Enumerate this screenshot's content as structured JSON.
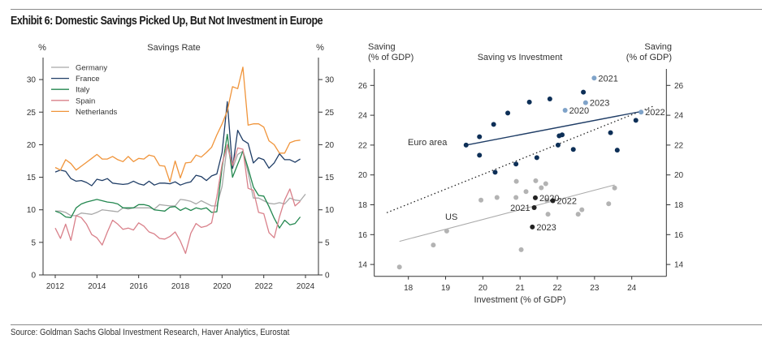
{
  "title": "Exhibit 6: Domestic Savings Picked Up, But Not Investment in Europe",
  "source": "Source: Goldman Sachs Global Investment Research, Haver Analytics, Eurostat",
  "chart_data": [
    {
      "type": "line",
      "title": "Savings Rate",
      "ylabel_left": "%",
      "ylabel_right": "%",
      "xlim": [
        2011.4,
        2024.3
      ],
      "ylim": [
        0,
        33
      ],
      "xticks": [
        2012,
        2014,
        2016,
        2018,
        2020,
        2022,
        2024
      ],
      "yticks": [
        0,
        5,
        10,
        15,
        20,
        25,
        30
      ],
      "grid": false,
      "legend": "top-left",
      "x_start": 2012.0,
      "x_step": 0.25,
      "series": [
        {
          "name": "Germany",
          "color": "#a8a8a8",
          "values": [
            9.8,
            9.8,
            9.6,
            9.1,
            9.1,
            9.5,
            9.4,
            9.3,
            9.6,
            10.0,
            9.9,
            9.8,
            9.7,
            10.3,
            10.1,
            10.3,
            10.3,
            10.3,
            10.3,
            10.1,
            10.8,
            10.7,
            10.6,
            10.6,
            11.6,
            11.5,
            11.3,
            10.9,
            11.4,
            11.0,
            10.6,
            10.6,
            13.6,
            20.0,
            16.3,
            18.5,
            19.0,
            15.7,
            11.8,
            11.8,
            11.4,
            11.0,
            10.9,
            11.1,
            10.9,
            11.8,
            11.5,
            11.4,
            12.4
          ]
        },
        {
          "name": "France",
          "color": "#1f3d66",
          "values": [
            15.8,
            16.1,
            15.9,
            14.8,
            14.4,
            14.5,
            14.2,
            13.7,
            14.7,
            14.5,
            14.8,
            14.1,
            14.0,
            13.9,
            14.0,
            14.4,
            14.0,
            13.8,
            14.4,
            13.8,
            14.1,
            14.1,
            14.0,
            14.3,
            13.8,
            14.1,
            14.3,
            15.3,
            15.1,
            14.5,
            15.2,
            15.5,
            18.8,
            26.6,
            16.4,
            22.2,
            20.7,
            20.2,
            17.2,
            18.0,
            17.7,
            16.4,
            17.2,
            18.6,
            17.7,
            17.7,
            17.3,
            17.8
          ]
        },
        {
          "name": "Italy",
          "color": "#23874f",
          "values": [
            9.8,
            9.5,
            8.9,
            8.8,
            10.3,
            10.9,
            11.2,
            11.4,
            11.6,
            11.4,
            11.2,
            11.1,
            10.9,
            10.3,
            10.3,
            10.3,
            10.8,
            10.8,
            10.6,
            10.0,
            9.9,
            9.8,
            10.4,
            10.5,
            9.9,
            10.3,
            9.9,
            10.3,
            10.1,
            10.3,
            9.6,
            9.7,
            16.5,
            21.6,
            15.0,
            17.0,
            19.0,
            16.4,
            13.5,
            12.2,
            12.1,
            10.5,
            8.7,
            7.2,
            8.4,
            7.7,
            7.9,
            8.9
          ]
        },
        {
          "name": "Spain",
          "color": "#d9808a",
          "values": [
            7.2,
            5.6,
            7.8,
            5.3,
            9.1,
            8.8,
            7.8,
            6.2,
            5.7,
            4.6,
            6.6,
            8.4,
            7.8,
            7.0,
            7.2,
            6.9,
            8.0,
            7.5,
            6.6,
            6.3,
            5.6,
            5.5,
            5.9,
            6.6,
            5.2,
            3.3,
            6.4,
            7.9,
            7.3,
            7.5,
            8.0,
            12.0,
            17.0,
            20.0,
            16.8,
            19.5,
            19.3,
            13.3,
            13.0,
            9.6,
            9.4,
            6.5,
            5.7,
            8.9,
            11.5,
            13.2,
            10.6,
            11.3
          ]
        },
        {
          "name": "Netherlands",
          "color": "#f0943a",
          "values": [
            16.5,
            16.1,
            17.7,
            17.1,
            16.1,
            16.7,
            17.3,
            17.9,
            18.5,
            17.8,
            17.8,
            18.2,
            17.7,
            17.4,
            18.2,
            17.4,
            17.9,
            17.8,
            18.4,
            18.2,
            16.8,
            16.7,
            14.3,
            17.5,
            14.9,
            17.2,
            17.3,
            18.4,
            18.1,
            18.8,
            19.6,
            21.5,
            23.2,
            25.2,
            28.9,
            28.6,
            31.9,
            23.0,
            23.2,
            23.2,
            22.7,
            20.6,
            20.0,
            18.7,
            18.7,
            20.3,
            20.6,
            20.7
          ]
        }
      ]
    },
    {
      "type": "scatter",
      "title": "Saving vs Investment",
      "ylabel_left": [
        "Saving",
        "(% of GDP)"
      ],
      "ylabel_right": [
        "Saving",
        "(% of GDP)"
      ],
      "xlabel": "Investment (% of GDP)",
      "xlim": [
        17.08,
        24.93
      ],
      "ylim": [
        13.2,
        27.1
      ],
      "xticks": [
        18,
        19,
        20,
        21,
        22,
        23,
        24
      ],
      "yticks": [
        14,
        16,
        18,
        20,
        22,
        24,
        26
      ],
      "grid": false,
      "groups": [
        {
          "name": "Euro area",
          "color": "#0d2f57",
          "label_color": "#1f3d66",
          "points": [
            [
              19.55,
              22.0
            ],
            [
              19.91,
              22.56
            ],
            [
              19.91,
              21.32
            ],
            [
              20.29,
              23.39
            ],
            [
              20.67,
              24.15
            ],
            [
              21.25,
              24.88
            ],
            [
              21.8,
              25.09
            ],
            [
              22.7,
              25.55
            ],
            [
              20.89,
              20.73
            ],
            [
              20.33,
              20.18
            ],
            [
              21.45,
              21.16
            ],
            [
              22.02,
              22.0
            ],
            [
              22.05,
              22.62
            ],
            [
              22.13,
              22.69
            ],
            [
              22.43,
              21.71
            ],
            [
              23.43,
              22.83
            ],
            [
              23.61,
              21.66
            ],
            [
              24.11,
              23.66
            ]
          ],
          "labeled": [
            {
              "label": "2020",
              "x": 22.21,
              "y": 24.33
            },
            {
              "label": "2021",
              "x": 22.99,
              "y": 26.49
            },
            {
              "label": "2022",
              "x": 24.25,
              "y": 24.21
            },
            {
              "label": "2023",
              "x": 22.76,
              "y": 24.84
            }
          ],
          "labeled_color": "#7fa3c9",
          "trend": [
            [
              19.55,
              22.0
            ],
            [
              24.25,
              24.25
            ]
          ]
        },
        {
          "name": "US",
          "color": "#b3b3b3",
          "label_color": "#b3b3b3",
          "points": [
            [
              17.76,
              13.83
            ],
            [
              18.67,
              15.3
            ],
            [
              19.03,
              16.24
            ],
            [
              19.95,
              18.31
            ],
            [
              20.38,
              18.49
            ],
            [
              20.89,
              18.49
            ],
            [
              20.9,
              19.57
            ],
            [
              21.16,
              18.88
            ],
            [
              21.42,
              19.61
            ],
            [
              21.57,
              19.14
            ],
            [
              21.69,
              19.41
            ],
            [
              21.72,
              18.29
            ],
            [
              21.75,
              17.37
            ],
            [
              21.03,
              14.99
            ],
            [
              22.56,
              17.37
            ],
            [
              22.66,
              17.67
            ],
            [
              23.38,
              18.07
            ],
            [
              23.54,
              19.13
            ]
          ],
          "labeled": [
            {
              "label": "2020",
              "x": 21.41,
              "y": 18.47
            },
            {
              "label": "2021",
              "x": 21.38,
              "y": 17.81
            },
            {
              "label": "2022",
              "x": 21.88,
              "y": 18.27
            },
            {
              "label": "2023",
              "x": 21.33,
              "y": 16.51
            }
          ],
          "labeled_color": "#222222",
          "trend": [
            [
              17.76,
              15.55
            ],
            [
              23.54,
              19.33
            ]
          ]
        }
      ],
      "dotted_trend": [
        [
          17.42,
          17.47
        ],
        [
          24.56,
          24.59
        ]
      ]
    }
  ]
}
